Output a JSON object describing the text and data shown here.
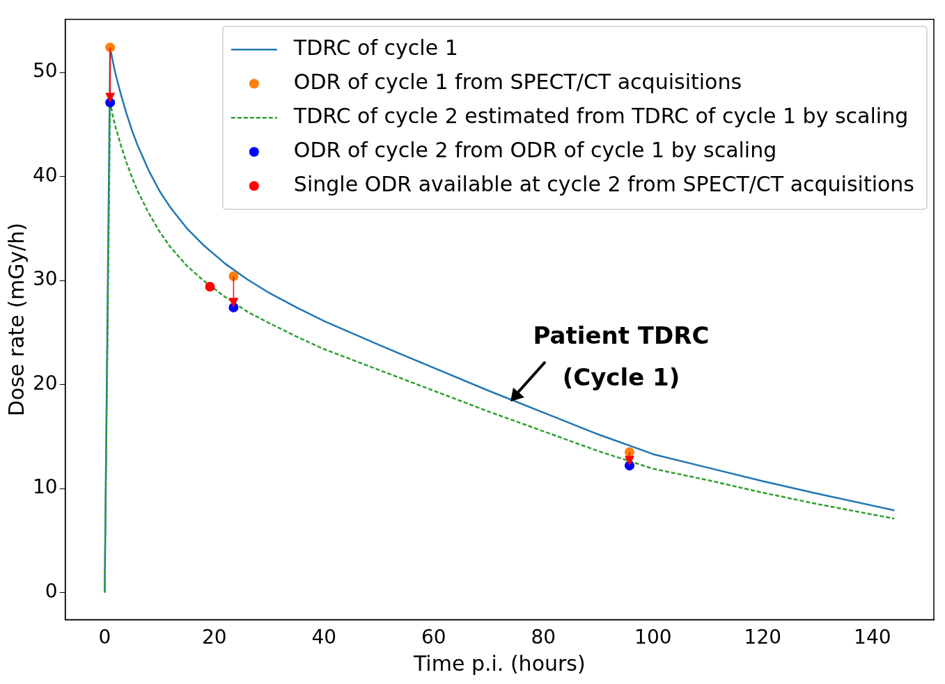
{
  "chart_data": {
    "type": "line",
    "xlabel": "Time p.i. (hours)",
    "ylabel": "Dose rate (mGy/h)",
    "xlim": [
      -7.2,
      151.2
    ],
    "xticks": [
      0,
      20,
      40,
      60,
      80,
      100,
      120,
      140
    ],
    "ylim": [
      -2.6,
      55.1
    ],
    "yticks": [
      0,
      10,
      20,
      30,
      40,
      50
    ],
    "grid": false,
    "legend": "top right",
    "series": [
      {
        "name": "TDRC of cycle 1",
        "color": "#1f77b4",
        "line_style": "solid",
        "marker": "none",
        "x": [
          0,
          1,
          1.5,
          2,
          3,
          4,
          5,
          6,
          8,
          10,
          12,
          15,
          18,
          22,
          26,
          30,
          35,
          40,
          50,
          60,
          70,
          80,
          90,
          100,
          110,
          120,
          130,
          144
        ],
        "values": [
          0,
          52.4,
          51,
          49.8,
          47.8,
          46,
          44.4,
          43,
          40.6,
          38.6,
          37,
          35,
          33.4,
          31.6,
          30.1,
          28.8,
          27.4,
          26.1,
          23.8,
          21.6,
          19.4,
          17.3,
          15.2,
          13.3,
          12,
          10.7,
          9.5,
          7.9
        ]
      },
      {
        "name": "ODR of cycle 1 from SPECT/CT acquisitions",
        "type": "scatter",
        "color": "#ff7f0e",
        "marker": "circle",
        "x": [
          1,
          23.5,
          95.7
        ],
        "values": [
          52.4,
          30.4,
          13.5
        ]
      },
      {
        "name": "TDRC of cycle 2 estimated from TDRC of cycle 1 by scaling",
        "color": "#2ca02c",
        "line_style": "dashed",
        "marker": "none",
        "x": [
          0,
          1,
          1.5,
          2,
          3,
          4,
          5,
          6,
          8,
          10,
          12,
          15,
          18,
          22,
          26,
          30,
          35,
          40,
          50,
          60,
          70,
          80,
          90,
          100,
          110,
          120,
          130,
          144
        ],
        "values": [
          0,
          47.1,
          45.8,
          44.7,
          42.9,
          41.3,
          39.9,
          38.6,
          36.5,
          34.7,
          33.2,
          31.4,
          30,
          28.4,
          27,
          25.9,
          24.6,
          23.4,
          21.4,
          19.4,
          17.4,
          15.5,
          13.6,
          11.9,
          10.8,
          9.6,
          8.5,
          7.1
        ]
      },
      {
        "name": "ODR of cycle 2 from ODR of cycle 1 by scaling",
        "type": "scatter",
        "color": "#0000ff",
        "marker": "circle",
        "x": [
          1,
          23.5,
          95.7
        ],
        "values": [
          47.1,
          27.4,
          12.2
        ]
      },
      {
        "name": "Single ODR available at cycle 2 from SPECT/CT acquisitions",
        "type": "scatter",
        "color": "#ff0000",
        "marker": "circle",
        "x": [
          19.2
        ],
        "values": [
          29.4
        ]
      }
    ],
    "annotations": [
      "Patient TDRC\n(Cycle 1)"
    ]
  }
}
